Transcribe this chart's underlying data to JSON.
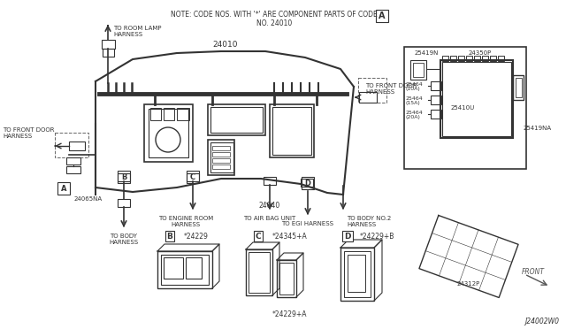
{
  "bg_color": "#ffffff",
  "line_color": "#333333",
  "part_number": "J24002W0",
  "labels": {
    "title_note": "NOTE: CODE NOS. WITH '*' ARE COMPONENT PARTS OF CODE",
    "title_note2": "NO. 24010",
    "main_part": "24010",
    "sub1": "24040",
    "to_room_lamp": "TO ROOM LAMP\nHARNESS",
    "to_front_door1": "TO FRONT DOOR\nHARNESS",
    "to_front_door2": "TO FRONT DOOR\nHARNESS",
    "to_body": "TO BODY\nHARNESS",
    "to_engine": "TO ENGINE ROOM\nHARNESS",
    "to_airbag": "TO AIR BAG UNIT",
    "to_egi": "TO EGI HARNESS",
    "to_body2": "TO BODY NO.2\nHARNESS",
    "code_24065NA": "24065NA",
    "B_part": "*24229",
    "C_part1": "*24345+A",
    "C_part2": "*24229+A",
    "D_part": "*24229+B",
    "p25419N": "25419N",
    "p24350P": "24350P",
    "p25464_10": "25464\n(10A)",
    "p25464_15": "25464\n(15A)",
    "p25464_20": "25464\n(20A)",
    "p25410U": "25410U",
    "p25419NA": "25419NA",
    "p24312P": "24312P",
    "FRONT": "FRONT"
  }
}
